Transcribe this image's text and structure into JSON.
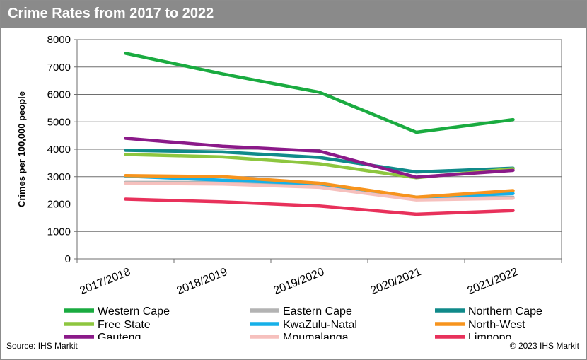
{
  "header": {
    "title": "Crime Rates from 2017 to 2022"
  },
  "footer": {
    "source": "Source: IHS Markit",
    "copyright": "© 2023 IHS Markit"
  },
  "chart_data": {
    "type": "line",
    "title": "Crime Rates from 2017 to 2022",
    "xlabel": "",
    "ylabel": "Crimes per 100,000 people",
    "x": [
      "2017/2018",
      "2018/2019",
      "2019/2020",
      "2020/2021",
      "2021/2022"
    ],
    "ylim": [
      0,
      8000
    ],
    "yticks": [
      0,
      1000,
      2000,
      3000,
      4000,
      5000,
      6000,
      7000,
      8000
    ],
    "grid": true,
    "legend_position": "bottom",
    "series": [
      {
        "name": "Western Cape",
        "color": "#1aab40",
        "values": [
          7500,
          6750,
          6080,
          4620,
          5080
        ]
      },
      {
        "name": "Eastern Cape",
        "color": "#b3b3b3",
        "values": [
          2790,
          2790,
          2650,
          2200,
          2250
        ]
      },
      {
        "name": "Northern Cape",
        "color": "#108a8a",
        "values": [
          3960,
          3900,
          3700,
          3170,
          3310
        ]
      },
      {
        "name": "Free State",
        "color": "#8dc63f",
        "values": [
          3810,
          3720,
          3470,
          2960,
          3290
        ]
      },
      {
        "name": "KwaZulu-Natal",
        "color": "#16b0e8",
        "values": [
          3020,
          2870,
          2740,
          2250,
          2380
        ]
      },
      {
        "name": "North-West",
        "color": "#f7941d",
        "values": [
          3040,
          3000,
          2760,
          2250,
          2490
        ]
      },
      {
        "name": "Gauteng",
        "color": "#8b1a89",
        "values": [
          4400,
          4110,
          3930,
          2980,
          3230
        ]
      },
      {
        "name": "Mpumalanga",
        "color": "#f6c0bd",
        "values": [
          2760,
          2730,
          2610,
          2150,
          2210
        ]
      },
      {
        "name": "Limpopo",
        "color": "#e8315b",
        "values": [
          2180,
          2080,
          1930,
          1630,
          1760
        ]
      }
    ]
  }
}
